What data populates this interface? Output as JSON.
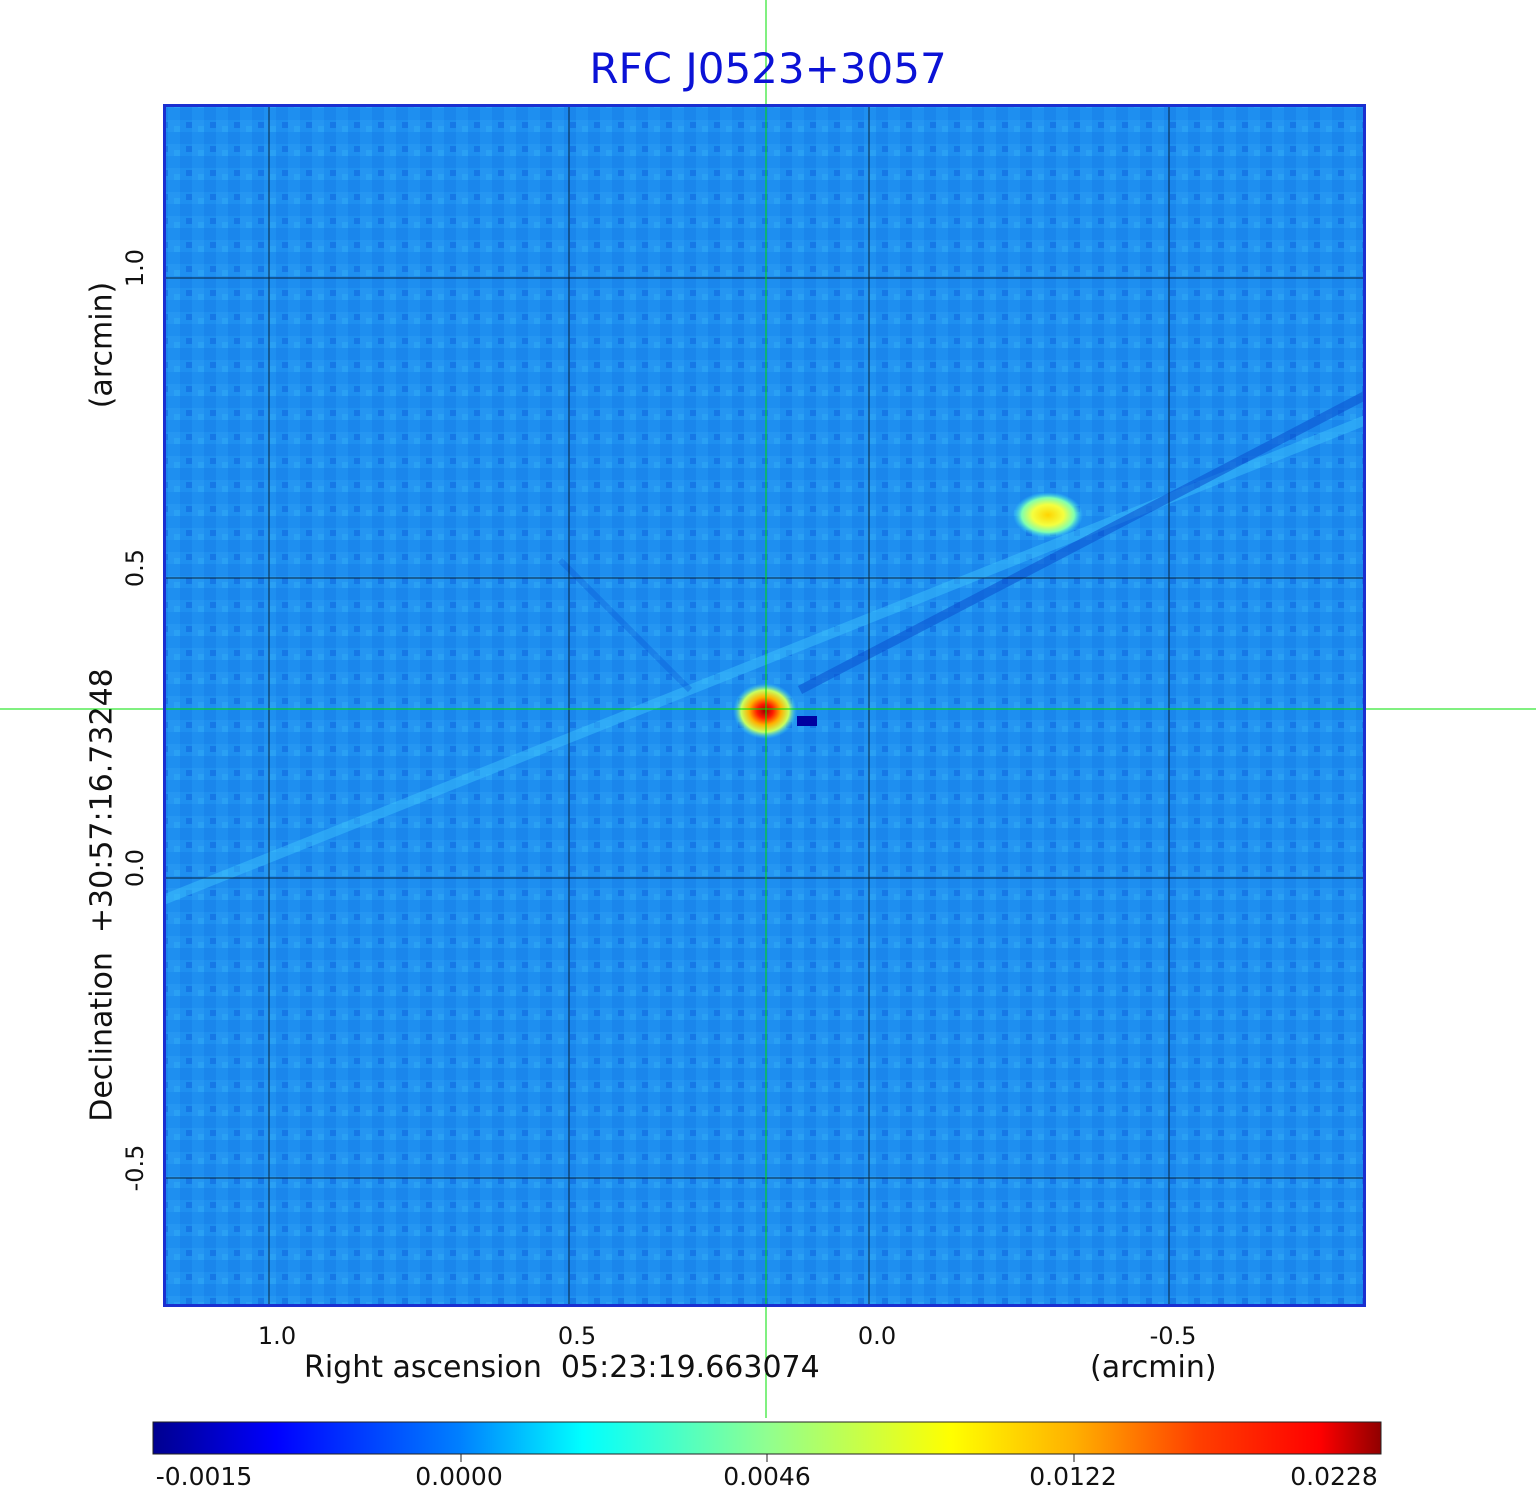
{
  "title": "RFC J0523+3057",
  "x_axis": {
    "label": "Right ascension  05:23:19.663074",
    "unit": "(arcmin)",
    "ticks": [
      "1.0",
      "0.5",
      "0.0",
      "-0.5"
    ]
  },
  "y_axis": {
    "label": "Declination  +30:57:16.73248",
    "unit": "(arcmin)",
    "ticks": [
      "1.0",
      "0.5",
      "0.0",
      "-0.5"
    ]
  },
  "colorbar": {
    "ticks": [
      "-0.0015",
      "0.0000",
      "0.0046",
      "0.0122",
      "0.0228"
    ],
    "colors": [
      "#00008f",
      "#0000ff",
      "#0080ff",
      "#00ffff",
      "#80ff80",
      "#ffff00",
      "#ff8000",
      "#ff0000",
      "#800000"
    ]
  },
  "colors": {
    "background": "#1e90ff",
    "grid": "#000000",
    "crosshair": "#00ff00",
    "title": "#0b12d6"
  }
}
